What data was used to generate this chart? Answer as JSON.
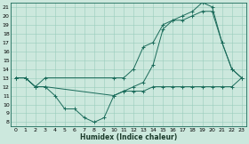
{
  "title": "",
  "xlabel": "Humidex (Indice chaleur)",
  "bg_color": "#cce8dd",
  "grid_color": "#99ccbb",
  "line_color": "#1a6b5a",
  "xlim": [
    -0.5,
    23.5
  ],
  "ylim": [
    7.5,
    21.5
  ],
  "xticks": [
    0,
    1,
    2,
    3,
    4,
    5,
    6,
    7,
    8,
    9,
    10,
    11,
    12,
    13,
    14,
    15,
    16,
    17,
    18,
    19,
    20,
    21,
    22,
    23
  ],
  "yticks": [
    8,
    9,
    10,
    11,
    12,
    13,
    14,
    15,
    16,
    17,
    18,
    19,
    20,
    21
  ],
  "line1_x": [
    0,
    1,
    2,
    3,
    4,
    5,
    6,
    7,
    8,
    9,
    10,
    11,
    12,
    13,
    14,
    15,
    16,
    17,
    18,
    19,
    20,
    21,
    22,
    23
  ],
  "line1_y": [
    13,
    13,
    12,
    12,
    11,
    9.5,
    9.5,
    8.5,
    8,
    8.5,
    11,
    11.5,
    11.5,
    11.5,
    12,
    12,
    12,
    12,
    12,
    12,
    12,
    12,
    12,
    13
  ],
  "line2_x": [
    0,
    1,
    2,
    3,
    10,
    11,
    12,
    13,
    14,
    15,
    16,
    17,
    18,
    19,
    20,
    21,
    22,
    23
  ],
  "line2_y": [
    13,
    13,
    12,
    13,
    13,
    13,
    14,
    16.5,
    17,
    19,
    19.5,
    20,
    20.5,
    21.5,
    21,
    17,
    14,
    13
  ],
  "line3_x": [
    0,
    1,
    2,
    3,
    10,
    11,
    12,
    13,
    14,
    15,
    16,
    17,
    18,
    19,
    20,
    21,
    22,
    23
  ],
  "line3_y": [
    13,
    13,
    12,
    12,
    11,
    11.5,
    12,
    12.5,
    14.5,
    18.5,
    19.5,
    19.5,
    20,
    20.5,
    20.5,
    17,
    14,
    13
  ]
}
